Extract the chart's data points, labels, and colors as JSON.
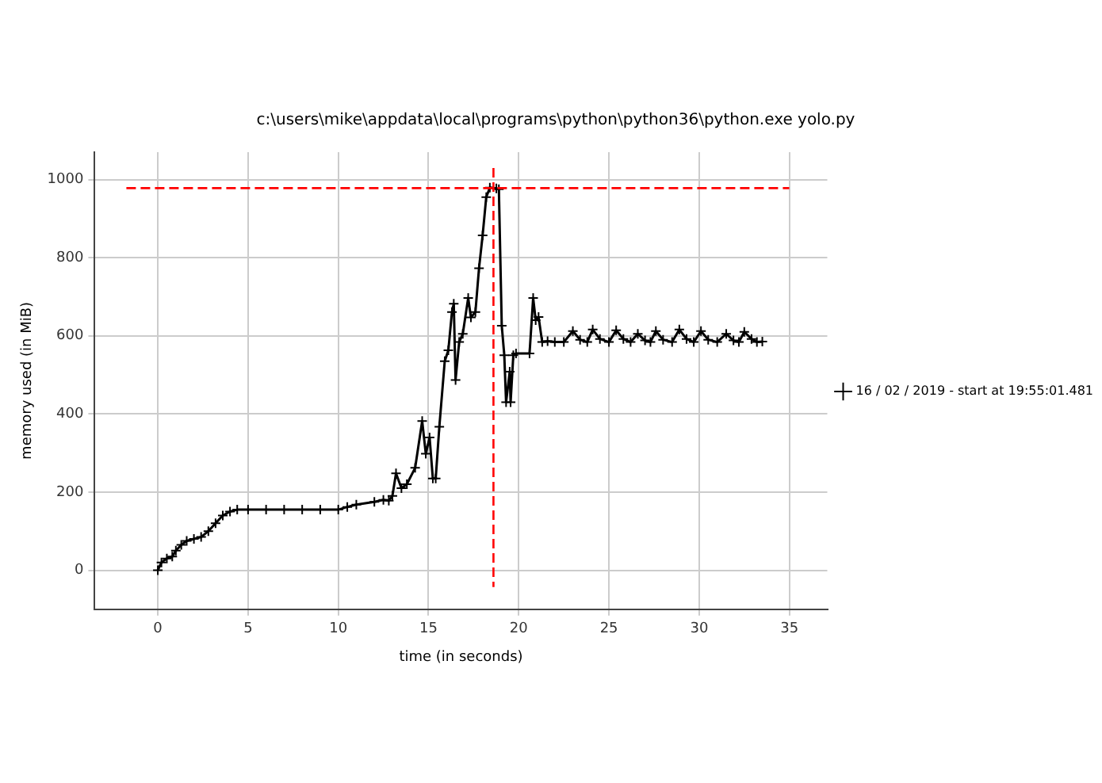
{
  "chart_data": {
    "type": "line",
    "title": "c:\\users\\mike\\appdata\\local\\programs\\python\\python36\\python.exe yolo.py",
    "xlabel": "time (in seconds)",
    "ylabel": "memory used (in MiB)",
    "xlim": [
      -3.5,
      37.1
    ],
    "ylim": [
      -100,
      1070
    ],
    "xticks": [
      0,
      5,
      10,
      15,
      20,
      25,
      30,
      35
    ],
    "yticks": [
      0,
      200,
      400,
      600,
      800,
      1000
    ],
    "grid": true,
    "legend": "right",
    "marker": "cross",
    "line_style": "solid",
    "ref_lines": [
      {
        "axis": "y",
        "value": 978,
        "color": "#ff0000",
        "line_style": "dashed"
      },
      {
        "axis": "x",
        "value": 18.6,
        "color": "#ff0000",
        "line_style": "dashed"
      }
    ],
    "series": [
      {
        "name": "16 / 02 / 2019 - start at 19:55:01.481",
        "color": "#000000",
        "x": [
          0,
          0.2,
          0.5,
          0.8,
          1.0,
          1.3,
          1.6,
          2.0,
          2.4,
          2.8,
          3.2,
          3.6,
          4.0,
          4.4,
          5,
          6,
          7,
          8,
          9,
          10,
          10.5,
          11,
          12,
          12.5,
          12.8,
          13.0,
          13.2,
          13.5,
          13.8,
          14.26,
          14.65,
          14.85,
          15.06,
          15.24,
          15.4,
          15.6,
          15.9,
          16.1,
          16.3,
          16.4,
          16.5,
          16.7,
          16.9,
          17.2,
          17.35,
          17.6,
          17.8,
          18.0,
          18.2,
          18.4,
          18.76,
          18.9,
          19.06,
          19.2,
          19.3,
          19.5,
          19.55,
          19.7,
          19.85,
          20.6,
          20.8,
          20.94,
          21.1,
          21.3,
          21.6,
          22.0,
          22.5,
          23.0,
          23.4,
          23.8,
          24.1,
          24.5,
          25.0,
          25.4,
          25.8,
          26.2,
          26.6,
          27.0,
          27.3,
          27.6,
          28.0,
          28.5,
          28.9,
          29.3,
          29.7,
          30.1,
          30.5,
          31.0,
          31.5,
          31.9,
          32.2,
          32.5,
          32.9,
          33.2,
          33.5
        ],
        "values": [
          0,
          20,
          30,
          35,
          50,
          65,
          75,
          80,
          85,
          100,
          120,
          140,
          150,
          155,
          155,
          155,
          155,
          155,
          155,
          155,
          162,
          168,
          175,
          180,
          178,
          190,
          248,
          210,
          220,
          262,
          382,
          298,
          340,
          235,
          235,
          367,
          535,
          563,
          661,
          682,
          487,
          584,
          605,
          697,
          647,
          661,
          773,
          857,
          955,
          979,
          977,
          975,
          626,
          550,
          430,
          508,
          430,
          550,
          555,
          555,
          697,
          640,
          648,
          584,
          586,
          584,
          584,
          612,
          590,
          584,
          616,
          592,
          584,
          614,
          592,
          584,
          605,
          588,
          584,
          612,
          590,
          584,
          616,
          592,
          584,
          612,
          590,
          584,
          605,
          588,
          584,
          610,
          592,
          584,
          585
        ]
      }
    ]
  }
}
